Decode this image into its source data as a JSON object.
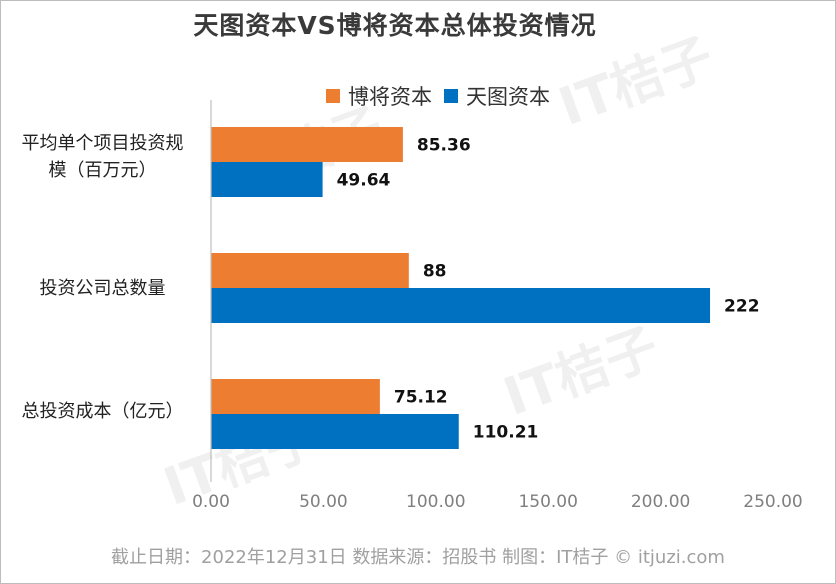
{
  "title": "天图资本VS博将资本总体投资情况",
  "footer": "截止日期：2022年12月31日    数据来源：招股书    制图：IT桔子 © itjuzi.com",
  "watermark": {
    "main": "IT桔子",
    "sub": "ITJUZI.COM"
  },
  "colors": {
    "series1": "#ED7D31",
    "series2": "#0070C0",
    "axis": "#bfbfbf",
    "tick_text": "#7f7f7f"
  },
  "chart_data": {
    "type": "bar",
    "orientation": "horizontal",
    "title": "天图资本VS博将资本总体投资情况",
    "categories": [
      "平均单个项目投资规模（百万元）",
      "投资公司总数量",
      "总投资成本（亿元）"
    ],
    "category_lines": [
      [
        "平均单个项目投资规",
        "模（百万元）"
      ],
      [
        "投资公司总数量"
      ],
      [
        "总投资成本（亿元）"
      ]
    ],
    "series": [
      {
        "name": "博将资本",
        "values": [
          85.36,
          88,
          75.12
        ],
        "labels": [
          "85.36",
          "88",
          "75.12"
        ]
      },
      {
        "name": "天图资本",
        "values": [
          49.64,
          222,
          110.21
        ],
        "labels": [
          "49.64",
          "222",
          "110.21"
        ]
      }
    ],
    "xlim": [
      0,
      250
    ],
    "xticks": [
      "0.00",
      "50.00",
      "100.00",
      "150.00",
      "200.00",
      "250.00"
    ],
    "legend_position": "top",
    "grid": false
  }
}
